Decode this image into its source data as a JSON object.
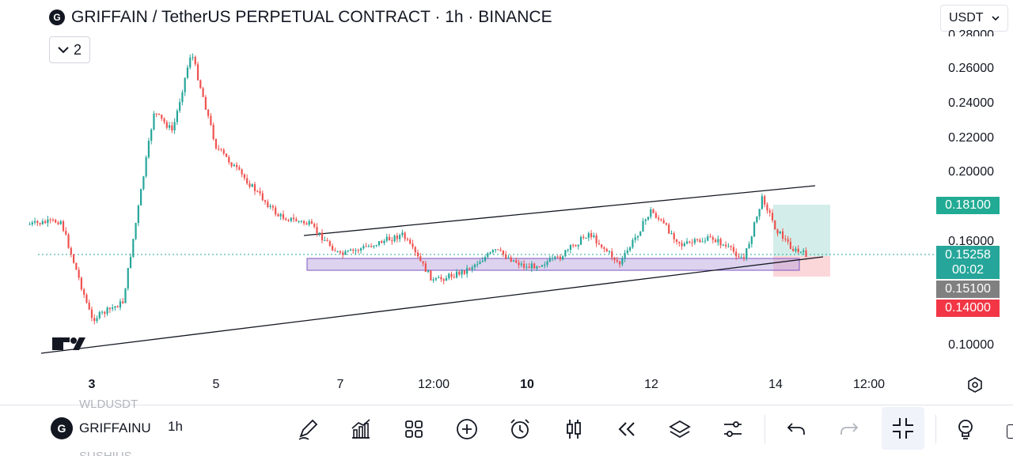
{
  "header": {
    "title": "GRIFFAIN / TetherUS PERPETUAL CONTRACT · 1h · BINANCE",
    "coin_letter": "G",
    "indicator_count": "2",
    "currency": "USDT"
  },
  "price_axis": {
    "labels": [
      "0.26000",
      "0.24000",
      "0.22000",
      "0.20000",
      "0.16000",
      "0.10000"
    ],
    "cut_label": "0.28000"
  },
  "badges": {
    "take_profit": "0.18100",
    "current_price": "0.15258",
    "countdown": "00:02",
    "entry": "0.15100",
    "stop_loss": "0.14000"
  },
  "time_axis": {
    "labels": [
      "3",
      "5",
      "7",
      "12:00",
      "10",
      "12",
      "14",
      "12:00"
    ]
  },
  "bottom_bar": {
    "symbol": "GRIFFAINU",
    "symbol_letter": "G",
    "interval": "1h",
    "ghost_top": "WLDUSDT",
    "ghost_bottom": "SUSHIUS"
  },
  "icons": [
    "pen-icon",
    "chart-indicator-icon",
    "grid-icon",
    "plus-circle-icon",
    "alarm-icon",
    "candles-icon",
    "rewind-icon",
    "layers-icon",
    "sliders-icon",
    "undo-icon",
    "redo-icon",
    "collapse-icon",
    "bulb-icon",
    "settings-hex-icon"
  ],
  "colors": {
    "up": "#26a69a",
    "down": "#ef5350",
    "take_profit_bg": "#22ab94",
    "current_price_bg": "#26a69a",
    "entry_bg": "#808080",
    "stop_loss_bg": "#f23645",
    "zone": "#b39ddb"
  },
  "chart_data": {
    "type": "candlestick",
    "symbol": "GRIFFAIN / TetherUS",
    "interval": "1h",
    "x_ticks": [
      "3",
      "5",
      "7",
      "12:00",
      "10",
      "12",
      "14",
      "12:00"
    ],
    "y_ticks": [
      0.26,
      0.24,
      0.22,
      0.2,
      0.16,
      0.1
    ],
    "ylim": [
      0.09,
      0.28
    ],
    "close_path": [
      {
        "t": "2",
        "p": 0.17
      },
      {
        "t": "2.5",
        "p": 0.172
      },
      {
        "t": "3",
        "p": 0.115
      },
      {
        "t": "3.5",
        "p": 0.125
      },
      {
        "t": "4",
        "p": 0.235
      },
      {
        "t": "4.3",
        "p": 0.224
      },
      {
        "t": "4.6",
        "p": 0.27
      },
      {
        "t": "5",
        "p": 0.215
      },
      {
        "t": "6",
        "p": 0.175
      },
      {
        "t": "6.5",
        "p": 0.17
      },
      {
        "t": "7",
        "p": 0.152
      },
      {
        "t": "8",
        "p": 0.164
      },
      {
        "t": "8.5",
        "p": 0.137
      },
      {
        "t": "9",
        "p": 0.143
      },
      {
        "t": "9.5",
        "p": 0.155
      },
      {
        "t": "10",
        "p": 0.145
      },
      {
        "t": "10.5",
        "p": 0.15
      },
      {
        "t": "11",
        "p": 0.165
      },
      {
        "t": "11.5",
        "p": 0.147
      },
      {
        "t": "12",
        "p": 0.178
      },
      {
        "t": "12.5",
        "p": 0.158
      },
      {
        "t": "13",
        "p": 0.162
      },
      {
        "t": "13.5",
        "p": 0.15
      },
      {
        "t": "13.8",
        "p": 0.186
      },
      {
        "t": "14",
        "p": 0.168
      },
      {
        "t": "14.3",
        "p": 0.155
      },
      {
        "t": "14.5",
        "p": 0.1526
      }
    ],
    "current_price": 0.15258,
    "position": {
      "take_profit": 0.181,
      "entry": 0.151,
      "stop_loss": 0.14
    }
  }
}
